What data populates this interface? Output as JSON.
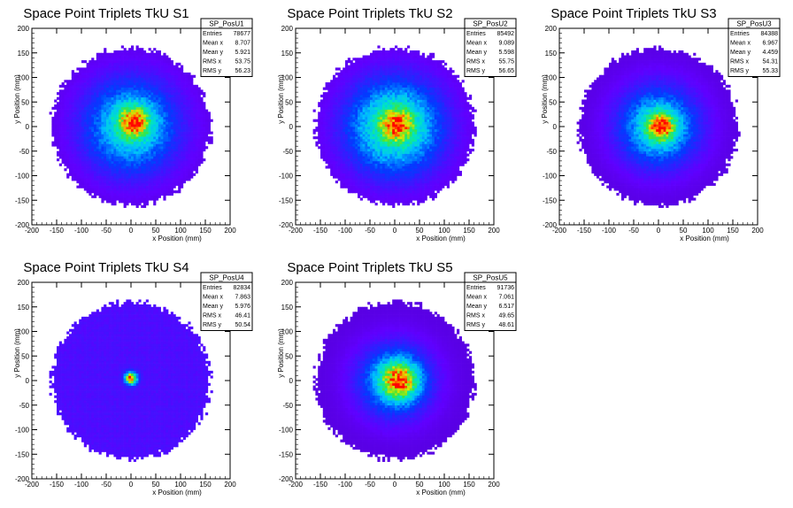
{
  "chart_data": [
    {
      "type": "heatmap",
      "title": "Space Point Triplets TkU S1",
      "xlabel": "x Position (mm)",
      "ylabel": "y Position (mm)",
      "xlim": [
        -200,
        200
      ],
      "ylim": [
        -200,
        200
      ],
      "xticks": [
        -200,
        -150,
        -100,
        -50,
        0,
        50,
        100,
        150,
        200
      ],
      "yticks": [
        -200,
        -150,
        -100,
        -50,
        0,
        50,
        100,
        150,
        200
      ],
      "stats": {
        "name": "SP_PosU1",
        "rows": [
          {
            "label": "Entries",
            "value": "78677"
          },
          {
            "label": "Mean x",
            "value": "8.707"
          },
          {
            "label": "Mean y",
            "value": "5.921"
          },
          {
            "label": "RMS x",
            "value": "53.75"
          },
          {
            "label": "RMS y",
            "value": "56.23"
          }
        ]
      },
      "shape": {
        "radius": 160,
        "core_x": 5,
        "core_y": 10,
        "core_sigma": 22,
        "halo_sigma": 65,
        "core_weight": 0.55
      }
    },
    {
      "type": "heatmap",
      "title": "Space Point Triplets TkU S2",
      "xlabel": "x Position (mm)",
      "ylabel": "y Position (mm)",
      "xlim": [
        -200,
        200
      ],
      "ylim": [
        -200,
        200
      ],
      "xticks": [
        -200,
        -150,
        -100,
        -50,
        0,
        50,
        100,
        150,
        200
      ],
      "yticks": [
        -200,
        -150,
        -100,
        -50,
        0,
        50,
        100,
        150,
        200
      ],
      "stats": {
        "name": "SP_PosU2",
        "rows": [
          {
            "label": "Entries",
            "value": "85492"
          },
          {
            "label": "Mean x",
            "value": "9.089"
          },
          {
            "label": "Mean y",
            "value": "5.598"
          },
          {
            "label": "RMS x",
            "value": "55.75"
          },
          {
            "label": "RMS y",
            "value": "56.65"
          }
        ]
      },
      "shape": {
        "radius": 160,
        "core_x": 5,
        "core_y": 5,
        "core_sigma": 22,
        "halo_sigma": 65,
        "core_weight": 0.45
      }
    },
    {
      "type": "heatmap",
      "title": "Space Point Triplets TkU S3",
      "xlabel": "x Position (mm)",
      "ylabel": "y Position (mm)",
      "xlim": [
        -200,
        200
      ],
      "ylim": [
        -200,
        200
      ],
      "xticks": [
        -200,
        -150,
        -100,
        -50,
        0,
        50,
        100,
        150,
        200
      ],
      "yticks": [
        -200,
        -150,
        -100,
        -50,
        0,
        50,
        100,
        150,
        200
      ],
      "stats": {
        "name": "SP_PosU3",
        "rows": [
          {
            "label": "Entries",
            "value": "84388"
          },
          {
            "label": "Mean x",
            "value": "6.967"
          },
          {
            "label": "Mean y",
            "value": "4.459"
          },
          {
            "label": "RMS x",
            "value": "54.31"
          },
          {
            "label": "RMS y",
            "value": "55.33"
          }
        ]
      },
      "shape": {
        "radius": 160,
        "core_x": 5,
        "core_y": 0,
        "core_sigma": 20,
        "halo_sigma": 55,
        "core_weight": 0.55
      }
    },
    {
      "type": "heatmap",
      "title": "Space Point Triplets TkU S4",
      "xlabel": "x Position (mm)",
      "ylabel": "y Position (mm)",
      "xlim": [
        -200,
        200
      ],
      "ylim": [
        -200,
        200
      ],
      "xticks": [
        -200,
        -150,
        -100,
        -50,
        0,
        50,
        100,
        150,
        200
      ],
      "yticks": [
        -200,
        -150,
        -100,
        -50,
        0,
        50,
        100,
        150,
        200
      ],
      "stats": {
        "name": "SP_PosU4",
        "rows": [
          {
            "label": "Entries",
            "value": "82834"
          },
          {
            "label": "Mean x",
            "value": "7.863"
          },
          {
            "label": "Mean y",
            "value": "5.976"
          },
          {
            "label": "RMS x",
            "value": "46.41"
          },
          {
            "label": "RMS y",
            "value": "50.54"
          }
        ]
      },
      "shape": {
        "radius": 160,
        "core_x": 0,
        "core_y": 5,
        "core_sigma": 8,
        "halo_sigma": 400,
        "core_weight": 0.92
      }
    },
    {
      "type": "heatmap",
      "title": "Space Point Triplets TkU S5",
      "xlabel": "x Position (mm)",
      "ylabel": "y Position (mm)",
      "xlim": [
        -200,
        200
      ],
      "ylim": [
        -200,
        200
      ],
      "xticks": [
        -200,
        -150,
        -100,
        -50,
        0,
        50,
        100,
        150,
        200
      ],
      "yticks": [
        -200,
        -150,
        -100,
        -50,
        0,
        50,
        100,
        150,
        200
      ],
      "stats": {
        "name": "SP_PosU5",
        "rows": [
          {
            "label": "Entries",
            "value": "91736"
          },
          {
            "label": "Mean x",
            "value": "7.061"
          },
          {
            "label": "Mean y",
            "value": "6.517"
          },
          {
            "label": "RMS x",
            "value": "49.65"
          },
          {
            "label": "RMS y",
            "value": "48.61"
          }
        ]
      },
      "shape": {
        "radius": 160,
        "core_x": 10,
        "core_y": 0,
        "core_sigma": 25,
        "halo_sigma": 50,
        "core_weight": 0.6
      }
    }
  ]
}
